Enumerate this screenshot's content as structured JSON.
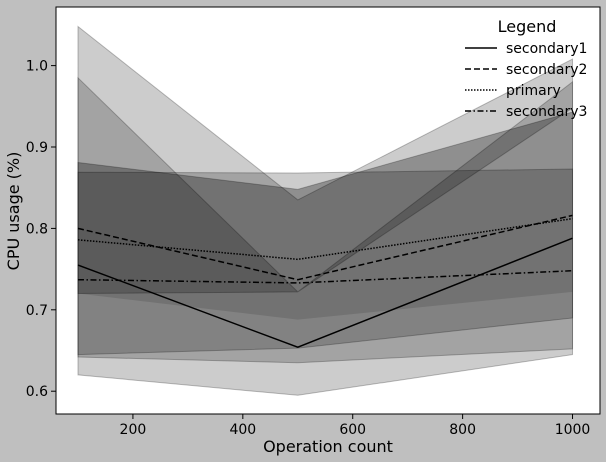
{
  "chart_data": {
    "type": "line",
    "xlabel": "Operation count",
    "ylabel": "CPU usage (%)",
    "xlim": [
      60,
      1050
    ],
    "ylim": [
      0.572,
      1.072
    ],
    "x_ticks": [
      200,
      400,
      600,
      800,
      1000
    ],
    "y_ticks": [
      0.6,
      0.7,
      0.8,
      0.9,
      1.0
    ],
    "grid": false,
    "legend": {
      "title": "Legend",
      "placement": "top-right"
    },
    "x": [
      100,
      500,
      1000
    ],
    "series": [
      {
        "name": "secondary1",
        "linestyle": "solid",
        "values": [
          0.755,
          0.654,
          0.788
        ],
        "lower": [
          0.645,
          0.653,
          0.69
        ],
        "upper": [
          0.869,
          0.868,
          0.873
        ],
        "band_color": "#000000",
        "band_opacity": 0.2
      },
      {
        "name": "secondary2",
        "linestyle": "dashed",
        "values": [
          0.8,
          0.737,
          0.816
        ],
        "lower": [
          0.62,
          0.595,
          0.645
        ],
        "upper": [
          1.048,
          0.835,
          1.008
        ],
        "band_color": "#000000",
        "band_opacity": 0.2
      },
      {
        "name": "primary",
        "linestyle": "dotted",
        "values": [
          0.786,
          0.762,
          0.812
        ],
        "lower": [
          0.72,
          0.722,
          0.948
        ],
        "upper": [
          0.985,
          0.722,
          0.98
        ],
        "band_color": "#000000",
        "band_opacity": 0.2
      },
      {
        "name": "secondary3",
        "linestyle": "dashdot",
        "values": [
          0.737,
          0.733,
          0.748
        ],
        "lower": [
          0.642,
          0.635,
          0.652
        ],
        "upper": [
          0.881,
          0.848,
          0.943
        ],
        "band_color": "#000000",
        "band_opacity": 0.2
      }
    ],
    "secondary_lower_band": {
      "lower": [
        0.72,
        0.688,
        0.722
      ]
    },
    "colors": {
      "figure_background": "#bfbfbf",
      "plot_background": "#ffffff",
      "line": "#000000"
    }
  }
}
